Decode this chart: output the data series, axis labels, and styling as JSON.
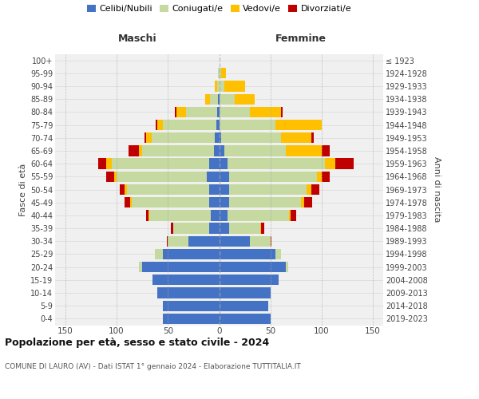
{
  "age_groups": [
    "0-4",
    "5-9",
    "10-14",
    "15-19",
    "20-24",
    "25-29",
    "30-34",
    "35-39",
    "40-44",
    "45-49",
    "50-54",
    "55-59",
    "60-64",
    "65-69",
    "70-74",
    "75-79",
    "80-84",
    "85-89",
    "90-94",
    "95-99",
    "100+"
  ],
  "birth_years": [
    "2019-2023",
    "2014-2018",
    "2009-2013",
    "2004-2008",
    "1999-2003",
    "1994-1998",
    "1989-1993",
    "1984-1988",
    "1979-1983",
    "1974-1978",
    "1969-1973",
    "1964-1968",
    "1959-1963",
    "1954-1958",
    "1949-1953",
    "1944-1948",
    "1939-1943",
    "1934-1938",
    "1929-1933",
    "1924-1928",
    "≤ 1923"
  ],
  "colors": {
    "celibe": "#4472c4",
    "coniugato": "#c5d9a0",
    "vedovo": "#ffc000",
    "divorziato": "#c00000"
  },
  "maschi": {
    "celibe": [
      55,
      55,
      60,
      65,
      75,
      55,
      30,
      10,
      8,
      10,
      10,
      12,
      10,
      5,
      4,
      3,
      2,
      1,
      0,
      0,
      0
    ],
    "coniugato": [
      0,
      0,
      0,
      0,
      3,
      8,
      20,
      35,
      60,
      75,
      80,
      88,
      95,
      70,
      62,
      52,
      30,
      8,
      2,
      1,
      0
    ],
    "vedovo": [
      0,
      0,
      0,
      0,
      0,
      0,
      0,
      0,
      1,
      2,
      2,
      2,
      5,
      3,
      5,
      5,
      10,
      5,
      2,
      0,
      0
    ],
    "divorziato": [
      0,
      0,
      0,
      0,
      0,
      0,
      1,
      2,
      2,
      5,
      5,
      8,
      8,
      10,
      2,
      2,
      1,
      0,
      0,
      0,
      0
    ]
  },
  "femmine": {
    "nubile": [
      50,
      48,
      50,
      58,
      65,
      55,
      30,
      10,
      8,
      10,
      10,
      10,
      8,
      5,
      2,
      0,
      0,
      0,
      0,
      0,
      0
    ],
    "coniugata": [
      0,
      0,
      0,
      0,
      2,
      5,
      20,
      30,
      60,
      70,
      75,
      85,
      95,
      60,
      58,
      55,
      30,
      15,
      5,
      2,
      0
    ],
    "vedova": [
      0,
      0,
      0,
      0,
      0,
      0,
      0,
      1,
      2,
      3,
      5,
      5,
      10,
      35,
      30,
      45,
      30,
      20,
      20,
      5,
      0
    ],
    "divorziata": [
      0,
      0,
      0,
      0,
      0,
      0,
      1,
      3,
      5,
      8,
      8,
      8,
      18,
      8,
      2,
      0,
      2,
      0,
      0,
      0,
      0
    ]
  },
  "title": "Popolazione per età, sesso e stato civile - 2024",
  "subtitle": "COMUNE DI LAURO (AV) - Dati ISTAT 1° gennaio 2024 - Elaborazione TUTTITALIA.IT",
  "xlabel_left": "Maschi",
  "xlabel_right": "Femmine",
  "ylabel_left": "Fasce di età",
  "ylabel_right": "Anni di nascita",
  "xlim": 160,
  "bg_color": "#ffffff",
  "plot_bg": "#f0f0f0",
  "grid_color": "#cccccc",
  "legend_labels": [
    "Celibi/Nubili",
    "Coniugati/e",
    "Vedovi/e",
    "Divorziati/e"
  ]
}
